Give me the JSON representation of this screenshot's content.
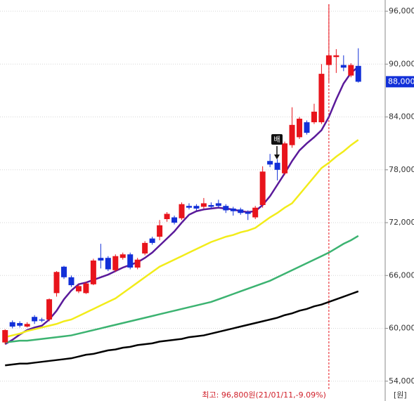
{
  "chart_data": {
    "type": "candlestick",
    "open": [
      58400,
      60700,
      60600,
      60200,
      61300,
      61000,
      61000,
      64000,
      67000,
      65800,
      64200,
      64000,
      65000,
      68000,
      68000,
      66600,
      68000,
      68400,
      66900,
      68500,
      70200,
      70400,
      72400,
      72600,
      72500,
      73900,
      73900,
      73800,
      74000,
      74200,
      73900,
      73600,
      73500,
      73200,
      72600,
      74000,
      79000,
      78800,
      77600,
      80800,
      81700,
      83400,
      83400,
      83400,
      89900,
      90800,
      89900,
      88700,
      89800
    ],
    "high": [
      59900,
      60900,
      60800,
      60700,
      61500,
      61200,
      63400,
      66500,
      67100,
      66000,
      65000,
      65300,
      67900,
      69600,
      68200,
      68400,
      68600,
      68600,
      68000,
      69900,
      70400,
      72300,
      73200,
      72800,
      74300,
      74200,
      74100,
      74800,
      74300,
      74600,
      74100,
      73800,
      73700,
      73400,
      73900,
      78400,
      79800,
      79200,
      81200,
      85100,
      84000,
      83600,
      85500,
      90000,
      96800,
      91700,
      91000,
      90100,
      91800
    ],
    "low": [
      58200,
      60000,
      60100,
      60100,
      60500,
      60700,
      60800,
      63600,
      65600,
      64700,
      64000,
      63900,
      64900,
      66800,
      66500,
      66400,
      67800,
      66700,
      66700,
      68300,
      69500,
      70000,
      72100,
      71800,
      72300,
      73500,
      73400,
      73600,
      73600,
      73700,
      73100,
      72800,
      72900,
      72300,
      72400,
      73700,
      78300,
      76800,
      77400,
      80500,
      81500,
      82000,
      83200,
      83200,
      88000,
      89000,
      89200,
      88500,
      87900
    ],
    "close": [
      59800,
      60200,
      60300,
      60500,
      60800,
      60900,
      63300,
      66400,
      65800,
      64900,
      64800,
      65100,
      67700,
      67700,
      66700,
      68200,
      68400,
      66900,
      67800,
      69700,
      69700,
      71700,
      73000,
      72000,
      74100,
      73700,
      73600,
      74200,
      73800,
      73900,
      73400,
      73300,
      73100,
      73000,
      73700,
      77800,
      78600,
      78000,
      81000,
      83100,
      83800,
      82200,
      84600,
      88900,
      91000,
      91000,
      89600,
      89900,
      88000
    ],
    "up_color": "#e8141c",
    "down_color": "#1230d8",
    "series": [
      {
        "color": "#5a1a9a",
        "values": [
          58200,
          58700,
          59300,
          59800,
          60100,
          60300,
          61000,
          62000,
          63300,
          64300,
          65000,
          65200,
          65500,
          65800,
          66100,
          66500,
          66900,
          67200,
          67500,
          68000,
          68600,
          69400,
          70200,
          71000,
          72000,
          72900,
          73300,
          73500,
          73600,
          73700,
          73600,
          73500,
          73300,
          73200,
          73300,
          74000,
          75000,
          76300,
          77600,
          79000,
          80200,
          81000,
          81700,
          82500,
          84000,
          86000,
          87800,
          89000,
          89700
        ]
      },
      {
        "color": "#f2ec1a",
        "values": [
          59000,
          59200,
          59400,
          59700,
          59900,
          60100,
          60300,
          60500,
          60800,
          61000,
          61400,
          61800,
          62200,
          62600,
          63000,
          63400,
          64000,
          64600,
          65200,
          65800,
          66400,
          67000,
          67400,
          67800,
          68200,
          68600,
          69000,
          69400,
          69800,
          70100,
          70400,
          70600,
          70900,
          71100,
          71400,
          72000,
          72600,
          73100,
          73700,
          74200,
          75200,
          76200,
          77200,
          78200,
          78800,
          79500,
          80100,
          80800,
          81400
        ]
      },
      {
        "color": "#3cb371",
        "values": [
          58400,
          58500,
          58600,
          58600,
          58700,
          58800,
          58900,
          59000,
          59100,
          59200,
          59400,
          59600,
          59800,
          60000,
          60200,
          60400,
          60600,
          60800,
          61000,
          61200,
          61400,
          61600,
          61800,
          62000,
          62200,
          62400,
          62600,
          62800,
          63000,
          63300,
          63600,
          63900,
          64200,
          64500,
          64800,
          65100,
          65400,
          65800,
          66200,
          66600,
          67000,
          67400,
          67800,
          68200,
          68600,
          69100,
          69600,
          70000,
          70500
        ]
      },
      {
        "color": "#000000",
        "values": [
          55800,
          55900,
          56000,
          56000,
          56100,
          56200,
          56300,
          56400,
          56500,
          56600,
          56800,
          57000,
          57100,
          57300,
          57500,
          57600,
          57800,
          57900,
          58100,
          58200,
          58300,
          58500,
          58600,
          58700,
          58800,
          59000,
          59100,
          59200,
          59400,
          59600,
          59800,
          60000,
          60200,
          60400,
          60600,
          60800,
          61000,
          61200,
          61500,
          61700,
          62000,
          62200,
          62500,
          62700,
          63000,
          63300,
          63600,
          63900,
          64200
        ]
      }
    ],
    "ylim": [
      51750,
      97280
    ],
    "yticks": [
      {
        "value": 96000,
        "label": "96,000"
      },
      {
        "value": 90000,
        "label": "90,000"
      },
      {
        "value": 84000,
        "label": "84,000"
      },
      {
        "value": 78000,
        "label": "78,000"
      },
      {
        "value": 72000,
        "label": "72,000"
      },
      {
        "value": 66000,
        "label": "66,000"
      },
      {
        "value": 60000,
        "label": "60,000"
      },
      {
        "value": 54000,
        "label": "54,000"
      }
    ],
    "grid": true,
    "current_price": {
      "value": 88000,
      "label": "88,000"
    },
    "unit_label": "[원]",
    "high_annotation": "최고: 96,800원(21/01/11,-9.09%)",
    "signal_label": "배"
  }
}
